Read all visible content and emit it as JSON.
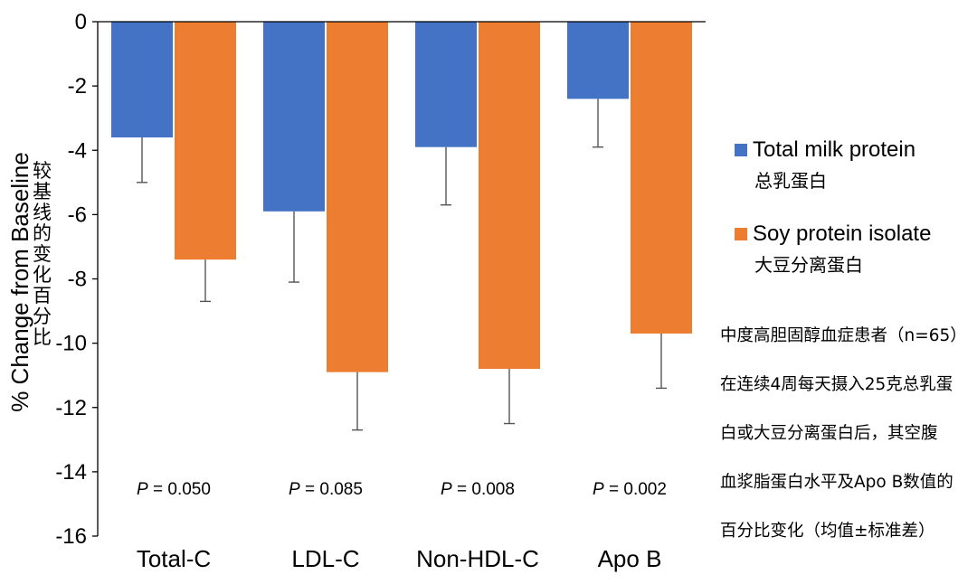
{
  "chart_data": {
    "type": "bar",
    "categories": [
      "Total-C",
      "LDL-C",
      "Non-HDL-C",
      "Apo B"
    ],
    "series": [
      {
        "name": "Total milk protein",
        "name_cn": "总乳蛋白",
        "color": "#4472C4",
        "values": [
          -3.6,
          -5.9,
          -3.9,
          -2.4
        ],
        "errors": [
          1.4,
          2.2,
          1.8,
          1.5
        ]
      },
      {
        "name": "Soy protein isolate",
        "name_cn": "大豆分离蛋白",
        "color": "#ED7D31",
        "values": [
          -7.4,
          -10.9,
          -10.8,
          -9.7
        ],
        "errors": [
          1.3,
          1.8,
          1.7,
          1.7
        ]
      }
    ],
    "p_values": [
      "0.050",
      "0.085",
      "0.008",
      "0.002"
    ],
    "p_label": "P",
    "ylabel": "% Change from Baseline",
    "ylabel_cn": "较基线的变化百分比",
    "ylim": [
      -16,
      0
    ],
    "yticks": [
      0,
      -2,
      -4,
      -6,
      -8,
      -10,
      -12,
      -14,
      -16
    ],
    "grid": false,
    "legend_position": "right"
  },
  "note": {
    "lines": [
      "中度高胆固醇血症患者（n=65）",
      "在连续4周每天摄入25克总乳蛋",
      "白或大豆分离蛋白后，其空腹",
      "血浆脂蛋白水平及Apo B数值的",
      "百分比变化（均值±标准差）"
    ]
  }
}
